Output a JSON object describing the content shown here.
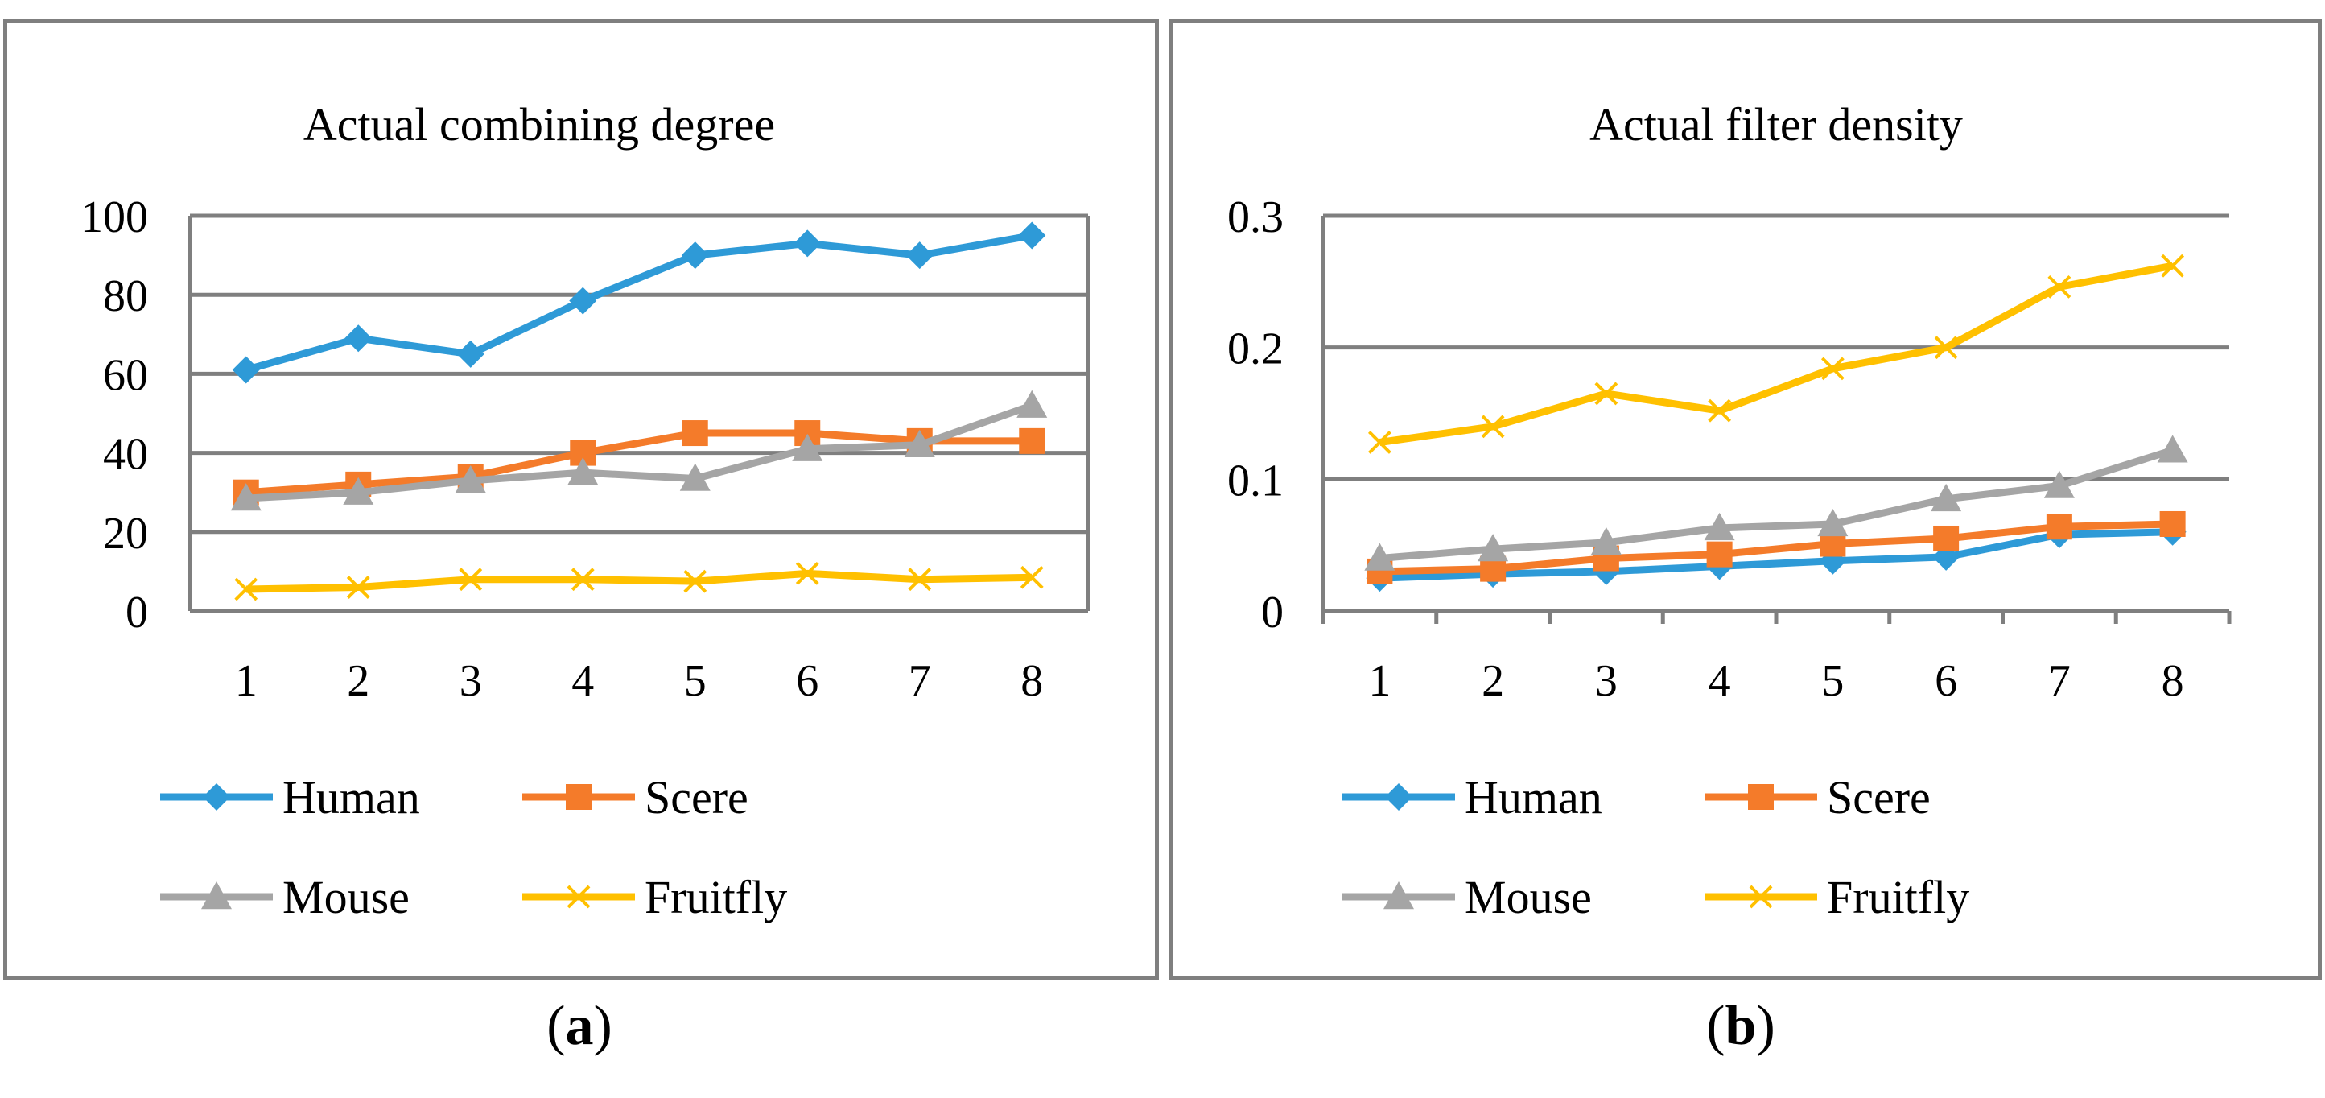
{
  "chart_data": [
    {
      "type": "line",
      "panel": "a",
      "title": "Actual combining degree",
      "categories": [
        "1",
        "2",
        "3",
        "4",
        "5",
        "6",
        "7",
        "8"
      ],
      "ylim": [
        0,
        100
      ],
      "yticks": [
        "0",
        "20",
        "40",
        "60",
        "80",
        "100"
      ],
      "ytick_values": [
        0,
        20,
        40,
        60,
        80,
        100
      ],
      "series": [
        {
          "name": "Human",
          "color": "#2E9AD7",
          "marker": "diamond",
          "values": [
            61,
            69,
            65,
            78.5,
            90,
            93,
            90,
            95
          ]
        },
        {
          "name": "Scere",
          "color": "#F47B2A",
          "marker": "square",
          "values": [
            30,
            32,
            34,
            40,
            45,
            45,
            43,
            43
          ]
        },
        {
          "name": "Mouse",
          "color": "#A5A5A5",
          "marker": "triangle",
          "values": [
            28.5,
            30,
            33,
            35,
            33.5,
            41,
            42,
            52
          ]
        },
        {
          "name": "Fruitfly",
          "color": "#FFC000",
          "marker": "x",
          "values": [
            5.5,
            6,
            8,
            8,
            7.5,
            9.5,
            8,
            8.5
          ]
        }
      ],
      "legend": "bottom"
    },
    {
      "type": "line",
      "panel": "b",
      "title": "Actual filter density",
      "categories": [
        "1",
        "2",
        "3",
        "4",
        "5",
        "6",
        "7",
        "8"
      ],
      "ylim": [
        0,
        0.3
      ],
      "yticks": [
        "0",
        "0.1",
        "0.2",
        "0.3"
      ],
      "ytick_values": [
        0,
        0.1,
        0.2,
        0.3
      ],
      "series": [
        {
          "name": "Human",
          "color": "#2E9AD7",
          "marker": "diamond",
          "values": [
            0.025,
            0.028,
            0.03,
            0.034,
            0.038,
            0.041,
            0.058,
            0.06
          ]
        },
        {
          "name": "Scere",
          "color": "#F47B2A",
          "marker": "square",
          "values": [
            0.03,
            0.032,
            0.04,
            0.043,
            0.051,
            0.055,
            0.064,
            0.066
          ]
        },
        {
          "name": "Mouse",
          "color": "#A5A5A5",
          "marker": "triangle",
          "values": [
            0.04,
            0.047,
            0.052,
            0.063,
            0.066,
            0.085,
            0.095,
            0.122
          ]
        },
        {
          "name": "Fruitfly",
          "color": "#FFC000",
          "marker": "x",
          "values": [
            0.128,
            0.14,
            0.165,
            0.152,
            0.184,
            0.2,
            0.246,
            0.262
          ]
        }
      ],
      "legend": "bottom"
    }
  ],
  "captions": {
    "a": {
      "open": "(",
      "letter": "a",
      "close": ")"
    },
    "b": {
      "open": "(",
      "letter": "b",
      "close": ")"
    }
  }
}
